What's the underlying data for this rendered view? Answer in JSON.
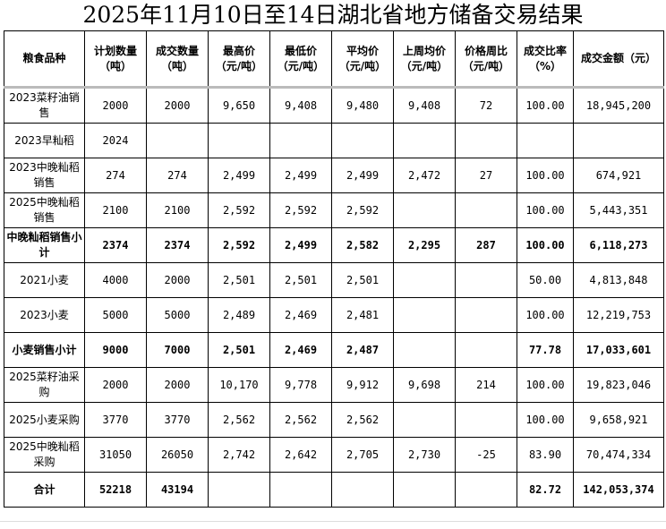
{
  "title": "2025年11月10日至14日湖北省地方储备交易结果",
  "headers": [
    "粮食品种",
    "计划数量（吨）",
    "成交数量（吨）",
    "最高价（元/吨）",
    "最低价（元/吨）",
    "平均价（元/吨）",
    "上周均价（元/吨）",
    "价格周比（元/吨）",
    "成交比率（%）",
    "成交金额（元）"
  ],
  "rows": [
    {
      "bold": false,
      "cells": [
        "2023菜籽油销售",
        "2000",
        "2000",
        "9,650",
        "9,408",
        "9,480",
        "9,408",
        "72",
        "100.00",
        "18,945,200"
      ]
    },
    {
      "bold": false,
      "cells": [
        "2023早籼稻",
        "2024",
        "",
        "",
        "",
        "",
        "",
        "",
        "",
        ""
      ]
    },
    {
      "bold": false,
      "cells": [
        "2023中晚籼稻销售",
        "274",
        "274",
        "2,499",
        "2,499",
        "2,499",
        "2,472",
        "27",
        "100.00",
        "674,921"
      ]
    },
    {
      "bold": false,
      "cells": [
        "2025中晚籼稻销售",
        "2100",
        "2100",
        "2,592",
        "2,592",
        "2,592",
        "",
        "",
        "100.00",
        "5,443,351"
      ]
    },
    {
      "bold": true,
      "cells": [
        "中晚籼稻销售小计",
        "2374",
        "2374",
        "2,592",
        "2,499",
        "2,582",
        "2,295",
        "287",
        "100.00",
        "6,118,273"
      ]
    },
    {
      "bold": false,
      "cells": [
        "2021小麦",
        "4000",
        "2000",
        "2,501",
        "2,501",
        "2,501",
        "",
        "",
        "50.00",
        "4,813,848"
      ]
    },
    {
      "bold": false,
      "cells": [
        "2023小麦",
        "5000",
        "5000",
        "2,489",
        "2,469",
        "2,481",
        "",
        "",
        "100.00",
        "12,219,753"
      ]
    },
    {
      "bold": true,
      "cells": [
        "小麦销售小计",
        "9000",
        "7000",
        "2,501",
        "2,469",
        "2,487",
        "",
        "",
        "77.78",
        "17,033,601"
      ]
    },
    {
      "bold": false,
      "cells": [
        "2025菜籽油采购",
        "2000",
        "2000",
        "10,170",
        "9,778",
        "9,912",
        "9,698",
        "214",
        "100.00",
        "19,823,046"
      ]
    },
    {
      "bold": false,
      "cells": [
        "2025小麦采购",
        "3770",
        "3770",
        "2,562",
        "2,562",
        "2,562",
        "",
        "",
        "100.00",
        "9,658,921"
      ]
    },
    {
      "bold": false,
      "cells": [
        "2025中晚籼稻采购",
        "31050",
        "26050",
        "2,742",
        "2,642",
        "2,705",
        "2,730",
        "-25",
        "83.90",
        "70,474,334"
      ]
    },
    {
      "bold": true,
      "cells": [
        "合计",
        "52218",
        "43194",
        "",
        "",
        "",
        "",
        "",
        "82.72",
        "142,053,374"
      ]
    }
  ]
}
